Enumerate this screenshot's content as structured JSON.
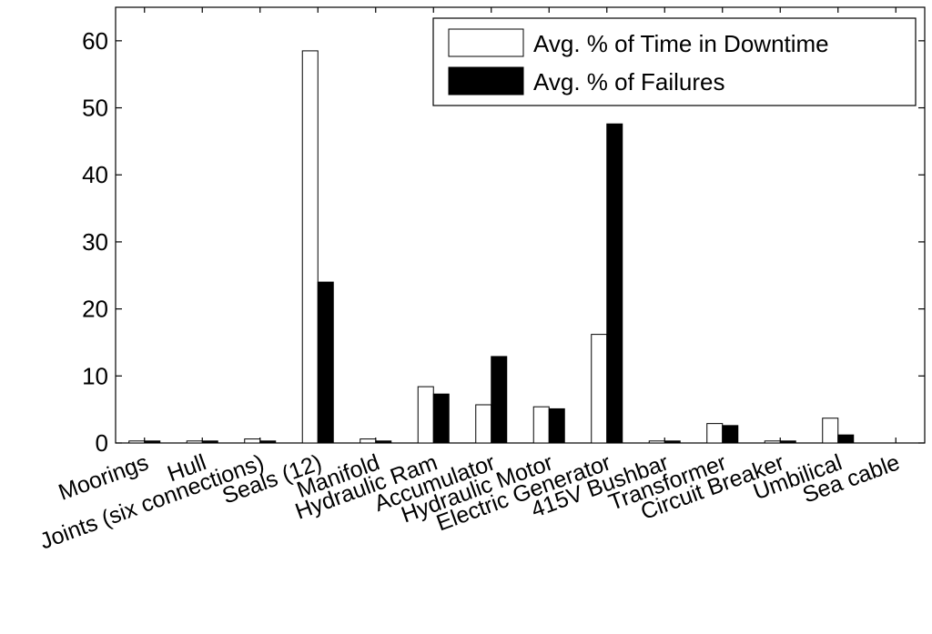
{
  "chart_data": {
    "type": "bar",
    "title": "",
    "xlabel": "",
    "ylabel": "",
    "ylim": [
      0,
      65
    ],
    "yticks": [
      0,
      10,
      20,
      30,
      40,
      50,
      60
    ],
    "grid": false,
    "legend_position": "top-right",
    "categories": [
      "Moorings",
      "Hull",
      "Joints (six connections)",
      "Seals (12)",
      "Manifold",
      "Hydraulic Ram",
      "Accumulator",
      "Hydraulic Motor",
      "Electric Generator",
      "415V Bushbar",
      "Transformer",
      "Circuit Breaker",
      "Umbilical",
      "Sea cable"
    ],
    "series": [
      {
        "name": "Avg. % of Time in Downtime",
        "color": "#ffffff",
        "values": [
          0.3,
          0.3,
          0.6,
          58.5,
          0.6,
          8.4,
          5.7,
          5.4,
          16.2,
          0.3,
          2.9,
          0.3,
          3.7,
          0
        ]
      },
      {
        "name": "Avg. % of Failures",
        "color": "#000000",
        "values": [
          0.3,
          0.3,
          0.3,
          24.0,
          0.3,
          7.3,
          12.9,
          5.1,
          47.6,
          0.3,
          2.6,
          0.3,
          1.2,
          0
        ]
      }
    ]
  }
}
